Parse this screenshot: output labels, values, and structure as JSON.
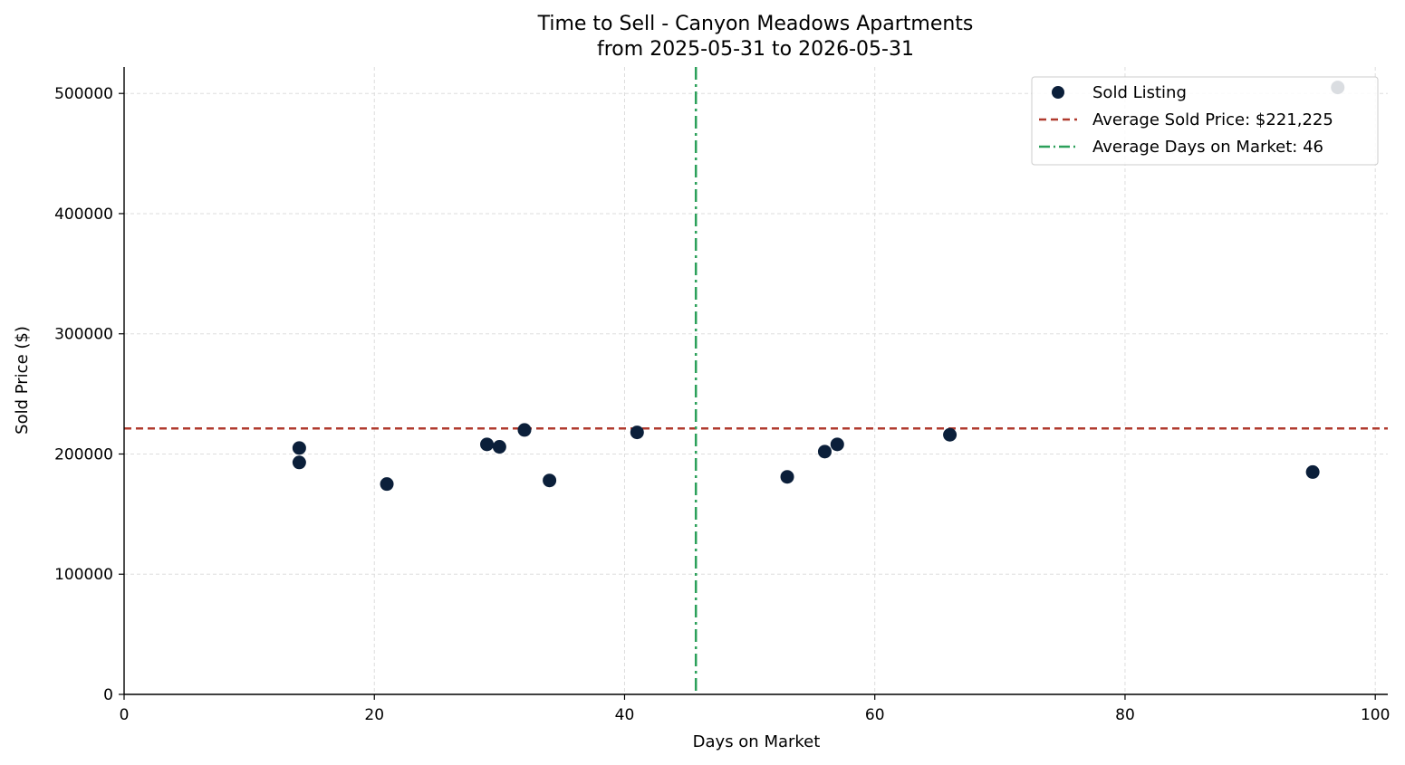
{
  "chart_data": {
    "type": "scatter",
    "title": "Time to Sell - Canyon Meadows Apartments",
    "subtitle": "from 2025-05-31 to 2026-05-31",
    "xlabel": "Days on Market",
    "ylabel": "Sold Price ($)",
    "xlim": [
      0,
      101
    ],
    "ylim": [
      0,
      522000
    ],
    "x_ticks": [
      0,
      20,
      40,
      60,
      80,
      100
    ],
    "y_ticks": [
      0,
      100000,
      200000,
      300000,
      400000,
      500000
    ],
    "grid": true,
    "legend_position": "top-right",
    "series": [
      {
        "name": "Sold Listing",
        "color": "#0b1f3a",
        "points": [
          {
            "x": 14,
            "y": 205000
          },
          {
            "x": 14,
            "y": 193000
          },
          {
            "x": 21,
            "y": 175000
          },
          {
            "x": 29,
            "y": 208000
          },
          {
            "x": 30,
            "y": 206000
          },
          {
            "x": 32,
            "y": 220000
          },
          {
            "x": 34,
            "y": 178000
          },
          {
            "x": 41,
            "y": 218000
          },
          {
            "x": 53,
            "y": 181000
          },
          {
            "x": 56,
            "y": 202000
          },
          {
            "x": 57,
            "y": 208000
          },
          {
            "x": 66,
            "y": 216000
          },
          {
            "x": 95,
            "y": 185000
          },
          {
            "x": 97,
            "y": 505000
          }
        ]
      }
    ],
    "reference_lines": [
      {
        "orientation": "horizontal",
        "value": 221225,
        "label": "Average Sold Price: $221,225",
        "color": "#b03a2e",
        "style": "dashed"
      },
      {
        "orientation": "vertical",
        "value": 45.7,
        "label": "Average Days on Market: 46",
        "color": "#2ca05a",
        "style": "dashdot"
      }
    ]
  }
}
